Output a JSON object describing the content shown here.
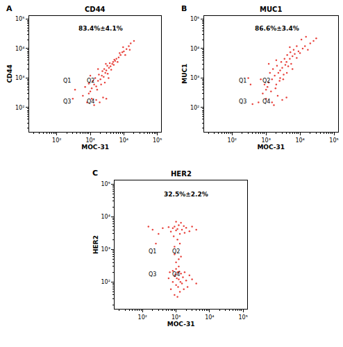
{
  "chart_data": [
    {
      "type": "scatter",
      "panel": "A",
      "title": "CD44",
      "x_label": "MOC-31",
      "y_label": "CD44",
      "annotation": "83.4%±4.1%",
      "quadrant_labels": [
        "Q1",
        "Q2",
        "Q3",
        "Q4"
      ],
      "gate": {
        "x": 450,
        "y": 280
      },
      "color": "#e8423c",
      "marker": "circle",
      "log": true,
      "grid": false,
      "xlim": [
        15,
        130000
      ],
      "ylim": [
        15,
        130000
      ],
      "xticks": [
        {
          "value": 100,
          "label": "10²"
        },
        {
          "value": 1000,
          "label": "10³"
        },
        {
          "value": 10000,
          "label": "10⁴"
        },
        {
          "value": 100000,
          "label": "10⁵"
        }
      ],
      "yticks": [
        {
          "value": 100,
          "label": "10²"
        },
        {
          "value": 1000,
          "label": "10³"
        },
        {
          "value": 10000,
          "label": "10⁴"
        },
        {
          "value": 100000,
          "label": "10⁵"
        }
      ],
      "x": [
        900,
        1100,
        1300,
        1500,
        1700,
        2000,
        2200,
        2500,
        2800,
        3000,
        3300,
        3600,
        4000,
        4500,
        5000,
        5500,
        6000,
        7000,
        8000,
        9000,
        10000,
        12000,
        14000,
        16000,
        20000,
        1200,
        1400,
        1800,
        2300,
        2600,
        3200,
        3800,
        4200,
        4800,
        5200,
        6500,
        7500,
        1000,
        1600,
        2100,
        2700,
        3500,
        1100,
        1500,
        1900,
        2400,
        800,
        1300,
        3000,
        600,
        700,
        900,
        350,
        300,
        1000,
        1700,
        2900,
        11000,
        9500,
        15000
      ],
      "values": [
        300,
        450,
        600,
        520,
        800,
        900,
        1200,
        1100,
        1500,
        1800,
        1400,
        2200,
        2500,
        3000,
        2800,
        3800,
        4500,
        5000,
        6000,
        7500,
        8000,
        9500,
        12000,
        15000,
        18000,
        800,
        1000,
        1300,
        1700,
        2000,
        2600,
        3200,
        1900,
        3500,
        4200,
        3500,
        7000,
        350,
        400,
        600,
        700,
        1000,
        200,
        180,
        150,
        220,
        150,
        120,
        200,
        250,
        500,
        650,
        400,
        200,
        1200,
        2000,
        3000,
        6000,
        11000,
        9000
      ]
    },
    {
      "type": "scatter",
      "panel": "B",
      "title": "MUC1",
      "x_label": "MOC-31",
      "y_label": "MUC1",
      "annotation": "86.6%±3.4%",
      "quadrant_labels": [
        "Q1",
        "Q2",
        "Q3",
        "Q4"
      ],
      "gate": {
        "x": 450,
        "y": 280
      },
      "color": "#e8423c",
      "marker": "circle",
      "log": true,
      "grid": false,
      "xlim": [
        15,
        130000
      ],
      "ylim": [
        15,
        130000
      ],
      "xticks": [
        {
          "value": 100,
          "label": "10²"
        },
        {
          "value": 1000,
          "label": "10³"
        },
        {
          "value": 10000,
          "label": "10⁴"
        },
        {
          "value": 100000,
          "label": "10⁵"
        }
      ],
      "yticks": [
        {
          "value": 100,
          "label": "10²"
        },
        {
          "value": 1000,
          "label": "10³"
        },
        {
          "value": 10000,
          "label": "10⁴"
        },
        {
          "value": 100000,
          "label": "10⁵"
        }
      ],
      "x": [
        1000,
        1200,
        1500,
        1800,
        2000,
        2300,
        2600,
        3000,
        3300,
        3700,
        4000,
        4500,
        5000,
        5500,
        6000,
        7000,
        8000,
        9000,
        10000,
        12000,
        14000,
        17000,
        20000,
        25000,
        1300,
        1600,
        2100,
        2800,
        3500,
        4200,
        5200,
        6500,
        1100,
        1400,
        1900,
        2500,
        3200,
        4100,
        6000,
        800,
        900,
        700,
        1000,
        1500,
        2200,
        3000,
        4000,
        1700,
        600,
        400,
        350,
        300,
        1200,
        2000,
        11000,
        15000,
        8000,
        5000,
        2600,
        30000
      ],
      "values": [
        400,
        700,
        900,
        1200,
        600,
        1500,
        1800,
        2200,
        1300,
        2800,
        3500,
        2500,
        4500,
        3000,
        5500,
        6500,
        4800,
        8000,
        7000,
        10000,
        12000,
        9000,
        15000,
        18000,
        1500,
        2000,
        2600,
        3500,
        4500,
        6000,
        7500,
        9000,
        500,
        350,
        450,
        800,
        900,
        1500,
        2000,
        300,
        600,
        900,
        200,
        150,
        250,
        180,
        220,
        120,
        150,
        130,
        600,
        1000,
        3000,
        4000,
        20000,
        25000,
        12000,
        11000,
        1000,
        22000
      ]
    },
    {
      "type": "scatter",
      "panel": "C",
      "title": "HER2",
      "x_label": "MOC-31",
      "y_label": "HER2",
      "annotation": "32.5%±2.2%",
      "quadrant_labels": [
        "Q1",
        "Q2",
        "Q3",
        "Q4"
      ],
      "gate": {
        "x": 450,
        "y": 300
      },
      "color": "#e8423c",
      "marker": "circle",
      "log": true,
      "grid": false,
      "xlim": [
        15,
        130000
      ],
      "ylim": [
        15,
        130000
      ],
      "xticks": [
        {
          "value": 100,
          "label": "10²"
        },
        {
          "value": 1000,
          "label": "10³"
        },
        {
          "value": 10000,
          "label": "10⁴"
        },
        {
          "value": 100000,
          "label": "10⁵"
        }
      ],
      "yticks": [
        {
          "value": 100,
          "label": "10²"
        },
        {
          "value": 1000,
          "label": "10³"
        },
        {
          "value": 10000,
          "label": "10⁴"
        },
        {
          "value": 100000,
          "label": "10⁵"
        }
      ],
      "x": [
        700,
        800,
        900,
        1000,
        1100,
        1200,
        1300,
        1400,
        900,
        1000,
        1100,
        1200,
        800,
        1500,
        1600,
        1700,
        1800,
        2000,
        2200,
        2500,
        950,
        1050,
        1150,
        1250,
        600,
        650,
        1350,
        3000,
        4000,
        1000,
        1200,
        900,
        1400,
        700,
        800,
        900,
        1000,
        1100,
        1200,
        1300,
        1500,
        1700,
        2000,
        2500,
        3000,
        600,
        850,
        1100,
        1400,
        1000,
        1800,
        4000,
        900,
        1300,
        200,
        300,
        150,
        400,
        250
      ],
      "values": [
        60,
        100,
        150,
        80,
        200,
        120,
        50,
        180,
        40,
        250,
        35,
        300,
        220,
        90,
        140,
        60,
        200,
        110,
        70,
        160,
        170,
        130,
        70,
        210,
        130,
        200,
        100,
        120,
        90,
        400,
        500,
        700,
        600,
        3500,
        4500,
        5000,
        3800,
        4200,
        5500,
        3000,
        4000,
        5200,
        4600,
        3600,
        5000,
        4800,
        2500,
        2000,
        6500,
        7000,
        3200,
        4000,
        1200,
        1500,
        4000,
        3000,
        5000,
        4500,
        1500
      ]
    }
  ]
}
